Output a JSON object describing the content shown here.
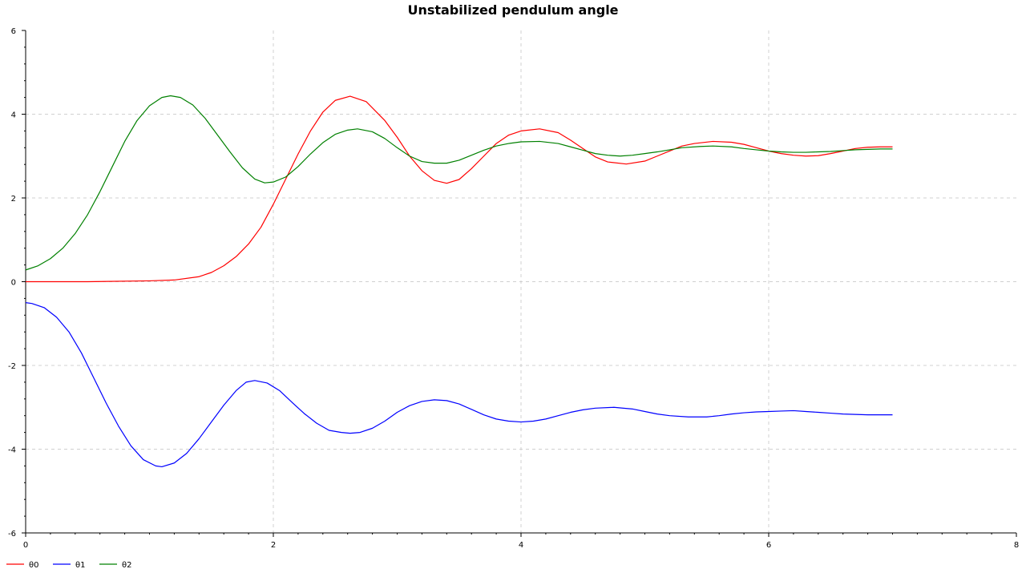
{
  "chart_data": {
    "type": "line",
    "title": "Unstabilized pendulum angle",
    "xlabel": "",
    "ylabel": "",
    "xlim": [
      0,
      8
    ],
    "ylim": [
      -6,
      6
    ],
    "x_ticks": [
      "0",
      "2",
      "4",
      "6",
      "8"
    ],
    "y_ticks": [
      "6",
      "4",
      "2",
      "0",
      "-2",
      "-4",
      "-6"
    ],
    "grid": true,
    "legend_position": "bottom-left",
    "series": [
      {
        "name": "θ0",
        "color": "#ff0000",
        "points": [
          [
            0,
            0
          ],
          [
            0.5,
            0
          ],
          [
            1.0,
            0.02
          ],
          [
            1.2,
            0.04
          ],
          [
            1.4,
            0.12
          ],
          [
            1.5,
            0.22
          ],
          [
            1.6,
            0.38
          ],
          [
            1.7,
            0.6
          ],
          [
            1.8,
            0.9
          ],
          [
            1.9,
            1.3
          ],
          [
            2.0,
            1.85
          ],
          [
            2.1,
            2.45
          ],
          [
            2.2,
            3.05
          ],
          [
            2.3,
            3.6
          ],
          [
            2.4,
            4.05
          ],
          [
            2.5,
            4.33
          ],
          [
            2.62,
            4.43
          ],
          [
            2.75,
            4.3
          ],
          [
            2.9,
            3.85
          ],
          [
            3.0,
            3.45
          ],
          [
            3.1,
            3.0
          ],
          [
            3.2,
            2.65
          ],
          [
            3.3,
            2.42
          ],
          [
            3.4,
            2.35
          ],
          [
            3.5,
            2.44
          ],
          [
            3.6,
            2.7
          ],
          [
            3.7,
            3.0
          ],
          [
            3.8,
            3.3
          ],
          [
            3.9,
            3.5
          ],
          [
            4.0,
            3.6
          ],
          [
            4.15,
            3.65
          ],
          [
            4.3,
            3.56
          ],
          [
            4.4,
            3.38
          ],
          [
            4.5,
            3.18
          ],
          [
            4.6,
            2.98
          ],
          [
            4.7,
            2.86
          ],
          [
            4.85,
            2.81
          ],
          [
            5.0,
            2.88
          ],
          [
            5.1,
            3.0
          ],
          [
            5.2,
            3.12
          ],
          [
            5.3,
            3.24
          ],
          [
            5.4,
            3.3
          ],
          [
            5.55,
            3.35
          ],
          [
            5.7,
            3.33
          ],
          [
            5.8,
            3.28
          ],
          [
            5.9,
            3.2
          ],
          [
            6.0,
            3.12
          ],
          [
            6.1,
            3.06
          ],
          [
            6.2,
            3.02
          ],
          [
            6.3,
            3.0
          ],
          [
            6.4,
            3.01
          ],
          [
            6.5,
            3.06
          ],
          [
            6.6,
            3.12
          ],
          [
            6.7,
            3.18
          ],
          [
            6.8,
            3.21
          ],
          [
            6.9,
            3.22
          ],
          [
            7.0,
            3.22
          ]
        ]
      },
      {
        "name": "θ1",
        "color": "#0000ff",
        "points": [
          [
            0,
            -0.5
          ],
          [
            0.05,
            -0.52
          ],
          [
            0.15,
            -0.62
          ],
          [
            0.25,
            -0.85
          ],
          [
            0.35,
            -1.2
          ],
          [
            0.45,
            -1.7
          ],
          [
            0.55,
            -2.3
          ],
          [
            0.65,
            -2.9
          ],
          [
            0.75,
            -3.45
          ],
          [
            0.85,
            -3.92
          ],
          [
            0.95,
            -4.25
          ],
          [
            1.05,
            -4.4
          ],
          [
            1.1,
            -4.42
          ],
          [
            1.2,
            -4.33
          ],
          [
            1.3,
            -4.1
          ],
          [
            1.4,
            -3.75
          ],
          [
            1.5,
            -3.35
          ],
          [
            1.6,
            -2.95
          ],
          [
            1.7,
            -2.6
          ],
          [
            1.78,
            -2.4
          ],
          [
            1.85,
            -2.36
          ],
          [
            1.95,
            -2.42
          ],
          [
            2.05,
            -2.6
          ],
          [
            2.15,
            -2.88
          ],
          [
            2.25,
            -3.15
          ],
          [
            2.35,
            -3.38
          ],
          [
            2.45,
            -3.55
          ],
          [
            2.55,
            -3.6
          ],
          [
            2.62,
            -3.62
          ],
          [
            2.7,
            -3.6
          ],
          [
            2.8,
            -3.5
          ],
          [
            2.9,
            -3.33
          ],
          [
            3.0,
            -3.12
          ],
          [
            3.1,
            -2.96
          ],
          [
            3.2,
            -2.86
          ],
          [
            3.3,
            -2.82
          ],
          [
            3.4,
            -2.84
          ],
          [
            3.5,
            -2.92
          ],
          [
            3.6,
            -3.05
          ],
          [
            3.7,
            -3.18
          ],
          [
            3.8,
            -3.28
          ],
          [
            3.9,
            -3.33
          ],
          [
            4.0,
            -3.35
          ],
          [
            4.1,
            -3.33
          ],
          [
            4.2,
            -3.28
          ],
          [
            4.3,
            -3.2
          ],
          [
            4.4,
            -3.12
          ],
          [
            4.5,
            -3.06
          ],
          [
            4.6,
            -3.02
          ],
          [
            4.75,
            -3.0
          ],
          [
            4.9,
            -3.04
          ],
          [
            5.0,
            -3.1
          ],
          [
            5.1,
            -3.16
          ],
          [
            5.2,
            -3.2
          ],
          [
            5.35,
            -3.23
          ],
          [
            5.5,
            -3.23
          ],
          [
            5.6,
            -3.2
          ],
          [
            5.7,
            -3.16
          ],
          [
            5.8,
            -3.13
          ],
          [
            5.9,
            -3.11
          ],
          [
            6.0,
            -3.1
          ],
          [
            6.1,
            -3.09
          ],
          [
            6.2,
            -3.08
          ],
          [
            6.3,
            -3.1
          ],
          [
            6.4,
            -3.12
          ],
          [
            6.5,
            -3.14
          ],
          [
            6.6,
            -3.16
          ],
          [
            6.7,
            -3.17
          ],
          [
            6.8,
            -3.18
          ],
          [
            7.0,
            -3.18
          ]
        ]
      },
      {
        "name": "θ2",
        "color": "#008000",
        "points": [
          [
            0,
            0.28
          ],
          [
            0.1,
            0.38
          ],
          [
            0.2,
            0.55
          ],
          [
            0.3,
            0.8
          ],
          [
            0.4,
            1.15
          ],
          [
            0.5,
            1.6
          ],
          [
            0.6,
            2.15
          ],
          [
            0.7,
            2.75
          ],
          [
            0.8,
            3.35
          ],
          [
            0.9,
            3.85
          ],
          [
            1.0,
            4.2
          ],
          [
            1.1,
            4.4
          ],
          [
            1.17,
            4.44
          ],
          [
            1.25,
            4.4
          ],
          [
            1.35,
            4.22
          ],
          [
            1.45,
            3.9
          ],
          [
            1.55,
            3.5
          ],
          [
            1.65,
            3.1
          ],
          [
            1.75,
            2.72
          ],
          [
            1.85,
            2.45
          ],
          [
            1.93,
            2.36
          ],
          [
            2.0,
            2.38
          ],
          [
            2.1,
            2.5
          ],
          [
            2.2,
            2.75
          ],
          [
            2.3,
            3.05
          ],
          [
            2.4,
            3.32
          ],
          [
            2.5,
            3.52
          ],
          [
            2.6,
            3.62
          ],
          [
            2.68,
            3.65
          ],
          [
            2.8,
            3.58
          ],
          [
            2.9,
            3.42
          ],
          [
            3.0,
            3.2
          ],
          [
            3.1,
            3.0
          ],
          [
            3.2,
            2.87
          ],
          [
            3.3,
            2.83
          ],
          [
            3.4,
            2.83
          ],
          [
            3.5,
            2.9
          ],
          [
            3.6,
            3.02
          ],
          [
            3.7,
            3.14
          ],
          [
            3.8,
            3.24
          ],
          [
            3.9,
            3.3
          ],
          [
            4.0,
            3.34
          ],
          [
            4.15,
            3.35
          ],
          [
            4.3,
            3.3
          ],
          [
            4.4,
            3.22
          ],
          [
            4.5,
            3.14
          ],
          [
            4.6,
            3.06
          ],
          [
            4.7,
            3.02
          ],
          [
            4.8,
            3.0
          ],
          [
            4.9,
            3.02
          ],
          [
            5.0,
            3.06
          ],
          [
            5.1,
            3.1
          ],
          [
            5.2,
            3.15
          ],
          [
            5.3,
            3.2
          ],
          [
            5.45,
            3.23
          ],
          [
            5.55,
            3.24
          ],
          [
            5.7,
            3.22
          ],
          [
            5.8,
            3.18
          ],
          [
            5.9,
            3.15
          ],
          [
            6.0,
            3.12
          ],
          [
            6.1,
            3.1
          ],
          [
            6.2,
            3.09
          ],
          [
            6.3,
            3.09
          ],
          [
            6.4,
            3.1
          ],
          [
            6.5,
            3.11
          ],
          [
            6.6,
            3.13
          ],
          [
            6.7,
            3.15
          ],
          [
            6.8,
            3.16
          ],
          [
            6.9,
            3.17
          ],
          [
            7.0,
            3.17
          ]
        ]
      }
    ]
  }
}
